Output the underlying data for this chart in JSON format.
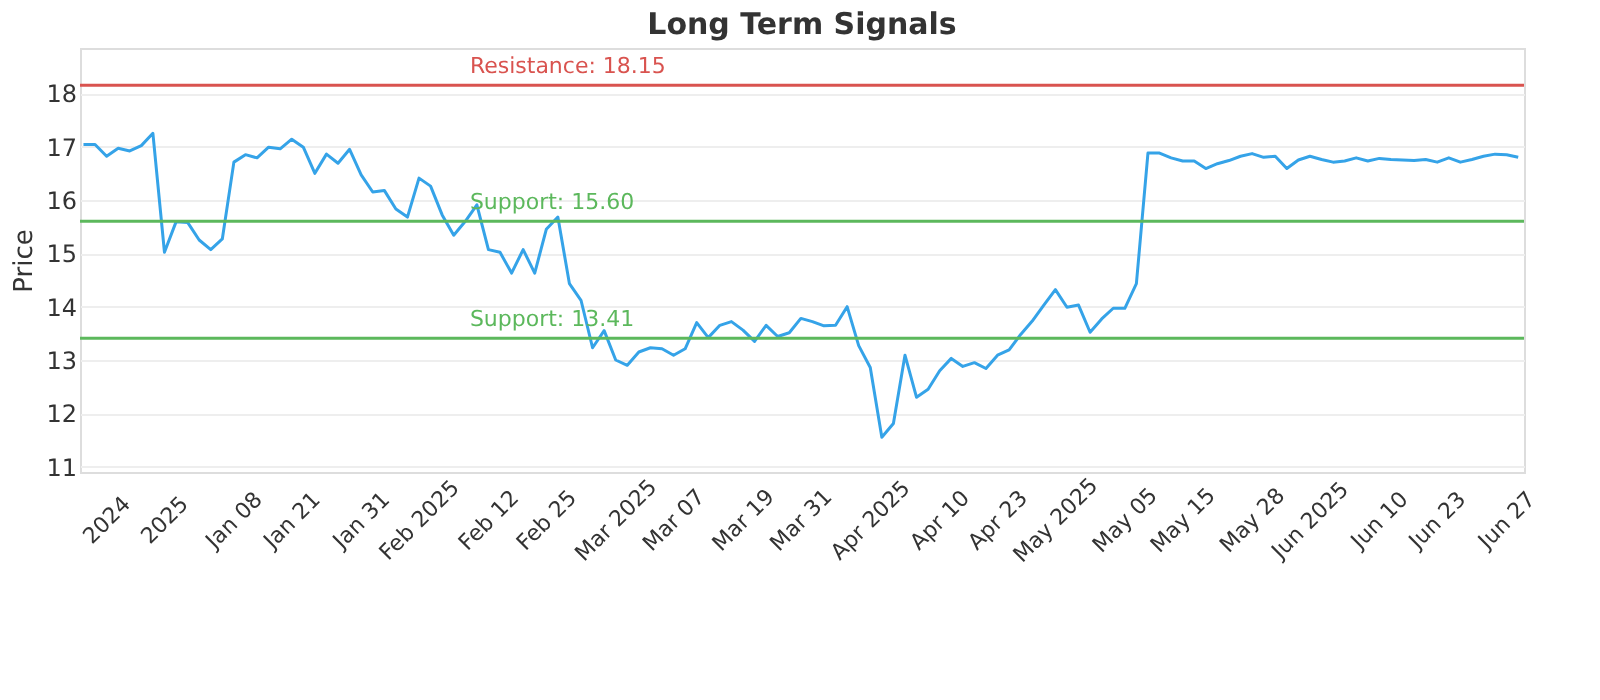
{
  "chart_data": {
    "type": "line",
    "title": "Long Term Signals",
    "ylabel": "Price",
    "categories": [
      null,
      null,
      "2024",
      null,
      null,
      null,
      null,
      "2025",
      null,
      null,
      null,
      null,
      null,
      "Jan 08",
      null,
      null,
      null,
      null,
      "Jan 21",
      null,
      null,
      null,
      null,
      null,
      "Jan 31",
      null,
      null,
      null,
      null,
      "Feb 2025",
      null,
      null,
      null,
      null,
      null,
      "Feb 12",
      null,
      null,
      null,
      null,
      "Feb 25",
      null,
      null,
      null,
      null,
      null,
      "Mar 2025",
      null,
      null,
      null,
      null,
      "Mar 07",
      null,
      null,
      null,
      null,
      null,
      "Mar 19",
      null,
      null,
      null,
      null,
      "Mar 31",
      null,
      null,
      null,
      null,
      null,
      "Apr 2025",
      null,
      null,
      null,
      null,
      null,
      "Apr 10",
      null,
      null,
      null,
      null,
      "Apr 23",
      null,
      null,
      null,
      null,
      "May 2025",
      null,
      null,
      null,
      null,
      null,
      "May 05",
      null,
      null,
      null,
      null,
      "May 15",
      null,
      null,
      null,
      null,
      null,
      "May 28",
      null,
      null,
      null,
      null,
      "Jun 2025",
      null,
      null,
      null,
      null,
      null,
      "Jun 10",
      null,
      null,
      null,
      null,
      "Jun 23",
      null,
      null,
      null,
      null,
      null,
      "Jun 27",
      null
    ],
    "series": [
      {
        "color": "#35a3e8",
        "values": [
          17.04,
          17.04,
          16.82,
          16.97,
          16.92,
          17.02,
          17.25,
          15.02,
          15.59,
          15.58,
          15.25,
          15.07,
          15.27,
          16.71,
          16.85,
          16.79,
          16.99,
          16.96,
          17.14,
          16.99,
          16.5,
          16.86,
          16.69,
          16.95,
          16.47,
          16.15,
          16.18,
          15.83,
          15.68,
          16.41,
          16.26,
          15.72,
          15.34,
          15.6,
          15.91,
          15.07,
          15.02,
          14.63,
          15.07,
          14.63,
          15.45,
          15.68,
          14.43,
          14.12,
          13.23,
          13.55,
          13.0,
          12.9,
          13.15,
          13.23,
          13.21,
          13.09,
          13.21,
          13.7,
          13.42,
          13.65,
          13.72,
          13.56,
          13.35,
          13.65,
          13.44,
          13.51,
          13.78,
          13.72,
          13.64,
          13.65,
          14.0,
          13.27,
          12.86,
          11.55,
          11.81,
          13.09,
          12.3,
          12.45,
          12.8,
          13.03,
          12.88,
          12.95,
          12.84,
          13.09,
          13.19,
          13.48,
          13.73,
          14.03,
          14.32,
          13.99,
          14.03,
          13.52,
          13.77,
          13.97,
          13.97,
          14.43,
          16.88,
          16.88,
          16.79,
          16.73,
          16.73,
          16.59,
          16.68,
          16.74,
          16.82,
          16.87,
          16.8,
          16.82,
          16.59,
          16.75,
          16.82,
          16.76,
          16.71,
          16.73,
          16.79,
          16.73,
          16.78,
          16.76,
          16.75,
          16.74,
          16.76,
          16.71,
          16.79,
          16.71,
          16.76,
          16.82,
          16.86,
          16.85,
          16.8
        ]
      }
    ],
    "ylim": [
      10.9,
      18.85
    ],
    "yticks": [
      11,
      12,
      13,
      14,
      15,
      16,
      17,
      18
    ],
    "grid": "y",
    "marker": "none",
    "line_style": "solid",
    "ref_lines": [
      {
        "axis": "y",
        "value": 18.15,
        "label": "Resistance: 18.15",
        "color": "#d9534f"
      },
      {
        "axis": "y",
        "value": 15.6,
        "label": "Support: 15.60",
        "color": "#5cb85c"
      },
      {
        "axis": "y",
        "value": 13.41,
        "label": "Support: 13.41",
        "color": "#5cb85c"
      }
    ]
  }
}
